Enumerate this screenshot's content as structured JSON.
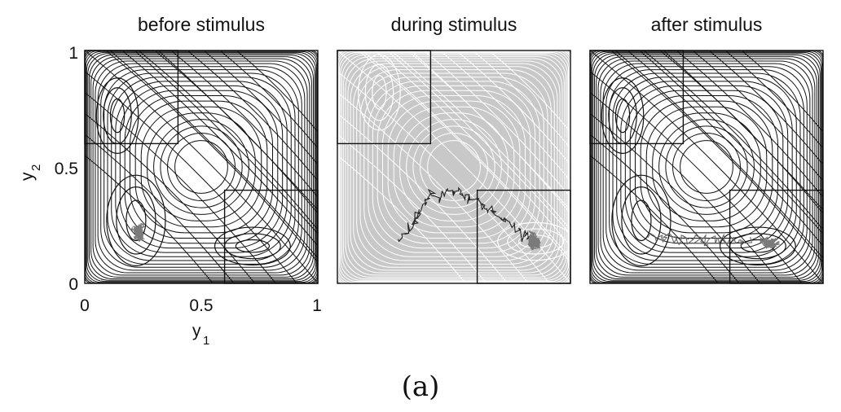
{
  "chart_data": {
    "type": "contour",
    "caption": "(a)",
    "xlabel": {
      "base": "y",
      "sub": "1"
    },
    "ylabel": {
      "base": "y",
      "sub": "2"
    },
    "xlim": [
      0,
      1
    ],
    "ylim": [
      0,
      1
    ],
    "xticks": [
      "0",
      "0.5",
      "1"
    ],
    "yticks": [
      "0",
      "0.5",
      "1"
    ],
    "panels": [
      {
        "title": "before stimulus",
        "background": "#ffffff",
        "contour_color": "#111111",
        "minima": [
          [
            0.14,
            0.72
          ],
          [
            0.22,
            0.27
          ],
          [
            0.72,
            0.16
          ]
        ],
        "boxes": [
          [
            0,
            0.6,
            0.4,
            1
          ],
          [
            0.6,
            0,
            1,
            0.4
          ]
        ],
        "cloud": {
          "center": [
            0.23,
            0.22
          ],
          "spread": [
            0.035,
            0.05
          ]
        },
        "path": []
      },
      {
        "title": "during stimulus",
        "background": "#c8c8c8",
        "contour_color": "#ffffff",
        "minima": [
          [
            0.18,
            0.82
          ],
          [
            0.85,
            0.18
          ]
        ],
        "boxes": [
          [
            0,
            0.6,
            0.4,
            1
          ],
          [
            0.6,
            0,
            1,
            0.4
          ]
        ],
        "cloud": {
          "center": [
            0.84,
            0.18
          ],
          "spread": [
            0.04,
            0.05
          ]
        },
        "path": [
          [
            0.27,
            0.2
          ],
          [
            0.3,
            0.22
          ],
          [
            0.33,
            0.27
          ],
          [
            0.35,
            0.3
          ],
          [
            0.38,
            0.36
          ],
          [
            0.4,
            0.38
          ],
          [
            0.44,
            0.37
          ],
          [
            0.47,
            0.4
          ],
          [
            0.5,
            0.39
          ],
          [
            0.53,
            0.38
          ],
          [
            0.56,
            0.36
          ],
          [
            0.6,
            0.36
          ],
          [
            0.63,
            0.33
          ],
          [
            0.67,
            0.31
          ],
          [
            0.7,
            0.28
          ],
          [
            0.73,
            0.27
          ],
          [
            0.77,
            0.24
          ],
          [
            0.8,
            0.21
          ],
          [
            0.83,
            0.19
          ]
        ]
      },
      {
        "title": "after stimulus",
        "background": "#ffffff",
        "contour_color": "#111111",
        "minima": [
          [
            0.14,
            0.72
          ],
          [
            0.22,
            0.27
          ],
          [
            0.72,
            0.16
          ]
        ],
        "boxes": [
          [
            0,
            0.6,
            0.4,
            1
          ],
          [
            0.6,
            0,
            1,
            0.4
          ]
        ],
        "cloud": {
          "center": [
            0.77,
            0.17
          ],
          "spread": [
            0.06,
            0.025
          ]
        },
        "path": [
          [
            0.26,
            0.2
          ],
          [
            0.3,
            0.19
          ],
          [
            0.34,
            0.2
          ],
          [
            0.38,
            0.19
          ],
          [
            0.42,
            0.2
          ],
          [
            0.46,
            0.19
          ],
          [
            0.5,
            0.18
          ],
          [
            0.54,
            0.2
          ],
          [
            0.58,
            0.18
          ],
          [
            0.62,
            0.19
          ],
          [
            0.66,
            0.17
          ],
          [
            0.7,
            0.18
          ]
        ]
      }
    ]
  }
}
